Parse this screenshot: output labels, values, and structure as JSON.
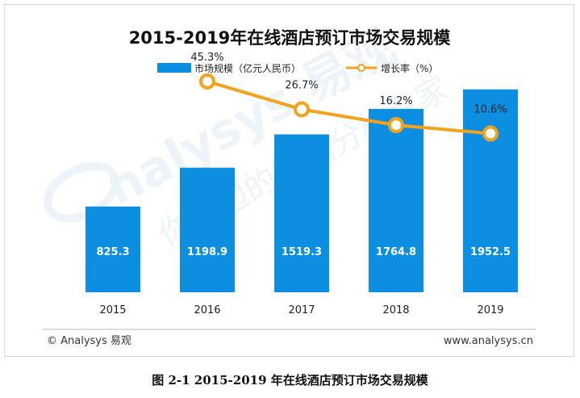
{
  "chart_data": {
    "type": "bar+line",
    "title": "2015-2019年在线酒店预订市场交易规模",
    "categories": [
      "2015",
      "2016",
      "2017",
      "2018",
      "2019"
    ],
    "series": [
      {
        "name": "市场规模（亿元人民币）",
        "type": "bar",
        "values": [
          825.3,
          1198.9,
          1519.3,
          1764.8,
          1952.5
        ],
        "labels": [
          "825.3",
          "1198.9",
          "1519.3",
          "1764.8",
          "1952.5"
        ]
      },
      {
        "name": "增长率（%）",
        "type": "line",
        "values": [
          null,
          45.3,
          26.7,
          16.2,
          10.6
        ],
        "labels": [
          "",
          "45.3%",
          "26.7%",
          "16.2%",
          "10.6%"
        ]
      }
    ],
    "ylim": [
      0,
      2300
    ],
    "y2lim": [
      -95,
      64
    ],
    "grid": false,
    "legend_position": "top-center",
    "colors": {
      "bar": "#0c8fe0",
      "line": "#f3a21b",
      "marker_fill": "#ffffff",
      "bar_label": "#ffffff",
      "line_label": "#222222"
    }
  },
  "footer": {
    "source": "© Analysys 易观",
    "website": "www.analysys.cn"
  },
  "caption": "图 2-1 2015-2019 年在线酒店预订市场交易规模",
  "watermark": {
    "text": "Analysys 易观",
    "sub": "你身边的数据分析专家"
  }
}
